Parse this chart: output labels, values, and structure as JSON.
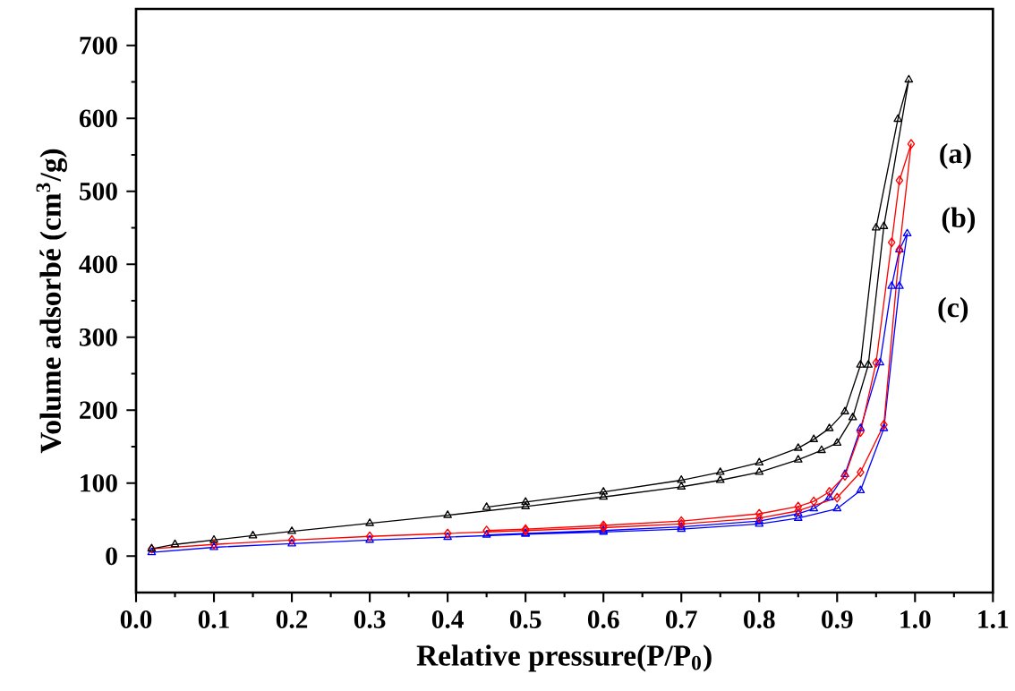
{
  "chart_data": {
    "type": "line",
    "xlabel": "Relative pressure(P/P$_{0}$)",
    "ylabel": "Volume adsorbé (cm$^{3}$/g)",
    "xlim": [
      0,
      1.1
    ],
    "ylim": [
      -50,
      750
    ],
    "xticks": [
      {
        "value": 0,
        "label": "0.0"
      },
      {
        "value": 0.1,
        "label": "0.1"
      },
      {
        "value": 0.2,
        "label": "0.2"
      },
      {
        "value": 0.3,
        "label": "0.3"
      },
      {
        "value": 0.4,
        "label": "0.4"
      },
      {
        "value": 0.5,
        "label": "0.5"
      },
      {
        "value": 0.6,
        "label": "0.6"
      },
      {
        "value": 0.7,
        "label": "0.7"
      },
      {
        "value": 0.8,
        "label": "0.8"
      },
      {
        "value": 0.9,
        "label": "0.9"
      },
      {
        "value": 1.0,
        "label": "1.0"
      },
      {
        "value": 1.1,
        "label": "1.1"
      }
    ],
    "yticks": [
      0,
      100,
      200,
      300,
      400,
      500,
      600,
      700
    ],
    "grid": false,
    "line_style": "solid",
    "series": [
      {
        "name": "(a)",
        "color": "#000000",
        "marker": "triangle",
        "x": [
          0.02,
          0.05,
          0.1,
          0.15,
          0.2,
          0.3,
          0.4,
          0.5,
          0.6,
          0.7,
          0.75,
          0.8,
          0.85,
          0.88,
          0.9,
          0.92,
          0.94,
          0.96,
          0.992,
          0.978,
          0.95,
          0.93,
          0.91,
          0.89,
          0.87,
          0.85,
          0.8,
          0.75,
          0.7,
          0.6,
          0.5,
          0.45
        ],
        "values": [
          10,
          16,
          22,
          28,
          34,
          45,
          56,
          68,
          81,
          95,
          104,
          115,
          132,
          145,
          155,
          190,
          262,
          452,
          653,
          599,
          450,
          262,
          198,
          175,
          160,
          148,
          128,
          115,
          104,
          88,
          74,
          67
        ]
      },
      {
        "name": "(b)",
        "color": "#ff0000",
        "marker": "diamond",
        "x": [
          0.02,
          0.1,
          0.2,
          0.3,
          0.4,
          0.5,
          0.6,
          0.7,
          0.8,
          0.85,
          0.9,
          0.93,
          0.96,
          0.98,
          0.995,
          0.98,
          0.97,
          0.95,
          0.93,
          0.91,
          0.89,
          0.87,
          0.85,
          0.8,
          0.7,
          0.6,
          0.5,
          0.45
        ],
        "values": [
          10,
          16,
          22,
          27,
          31,
          35,
          39,
          44,
          52,
          62,
          80,
          115,
          180,
          420,
          565,
          515,
          430,
          265,
          170,
          110,
          88,
          75,
          68,
          58,
          48,
          42,
          37,
          35
        ]
      },
      {
        "name": "(c)",
        "color": "#0000ff",
        "marker": "triangle",
        "x": [
          0.02,
          0.1,
          0.2,
          0.3,
          0.4,
          0.5,
          0.6,
          0.7,
          0.8,
          0.85,
          0.9,
          0.93,
          0.96,
          0.98,
          0.99,
          0.98,
          0.97,
          0.955,
          0.93,
          0.91,
          0.89,
          0.87,
          0.85,
          0.8,
          0.7,
          0.6,
          0.5,
          0.45
        ],
        "values": [
          5,
          12,
          17,
          22,
          26,
          30,
          33,
          37,
          44,
          52,
          65,
          90,
          175,
          370,
          442,
          420,
          370,
          265,
          175,
          112,
          80,
          65,
          58,
          48,
          40,
          35,
          31,
          29
        ]
      }
    ]
  }
}
